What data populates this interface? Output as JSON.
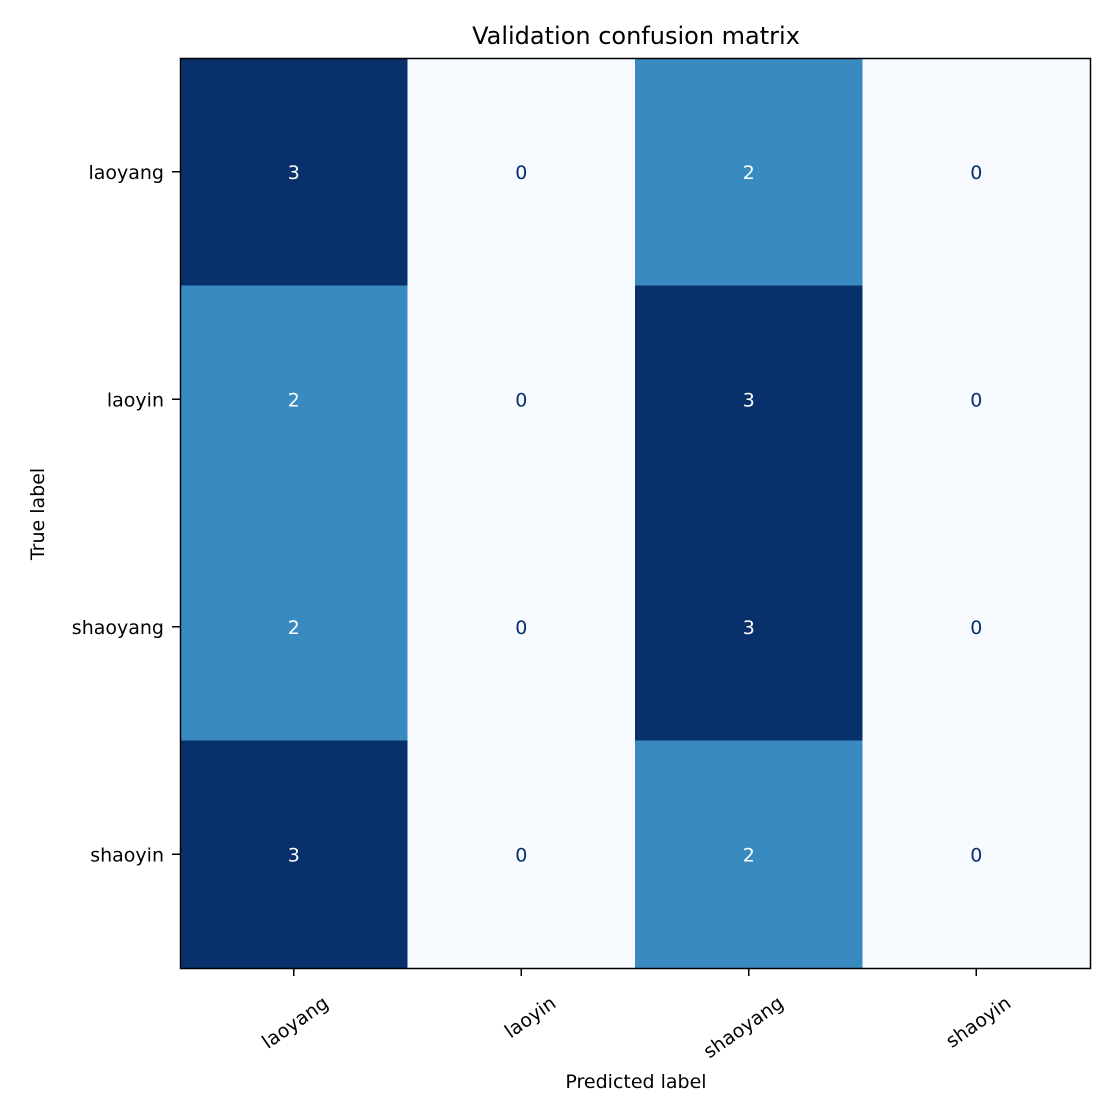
{
  "chart_data": {
    "type": "heatmap",
    "title": "Validation confusion matrix",
    "xlabel": "Predicted label",
    "ylabel": "True label",
    "x_categories": [
      "laoyang",
      "laoyin",
      "shaoyang",
      "shaoyin"
    ],
    "y_categories": [
      "laoyang",
      "laoyin",
      "shaoyang",
      "shaoyin"
    ],
    "values": [
      [
        3,
        0,
        2,
        0
      ],
      [
        2,
        0,
        3,
        0
      ],
      [
        2,
        0,
        3,
        0
      ],
      [
        3,
        0,
        2,
        0
      ]
    ],
    "value_range": [
      0,
      3
    ],
    "colormap": "Blues",
    "colors": {
      "low": "#f7fbff",
      "mid": "#3a8ac2",
      "high": "#08306b"
    },
    "text_colors": {
      "on_dark": "#ffffff",
      "on_light": "#08306b"
    },
    "grid": false,
    "colorbar": false
  }
}
